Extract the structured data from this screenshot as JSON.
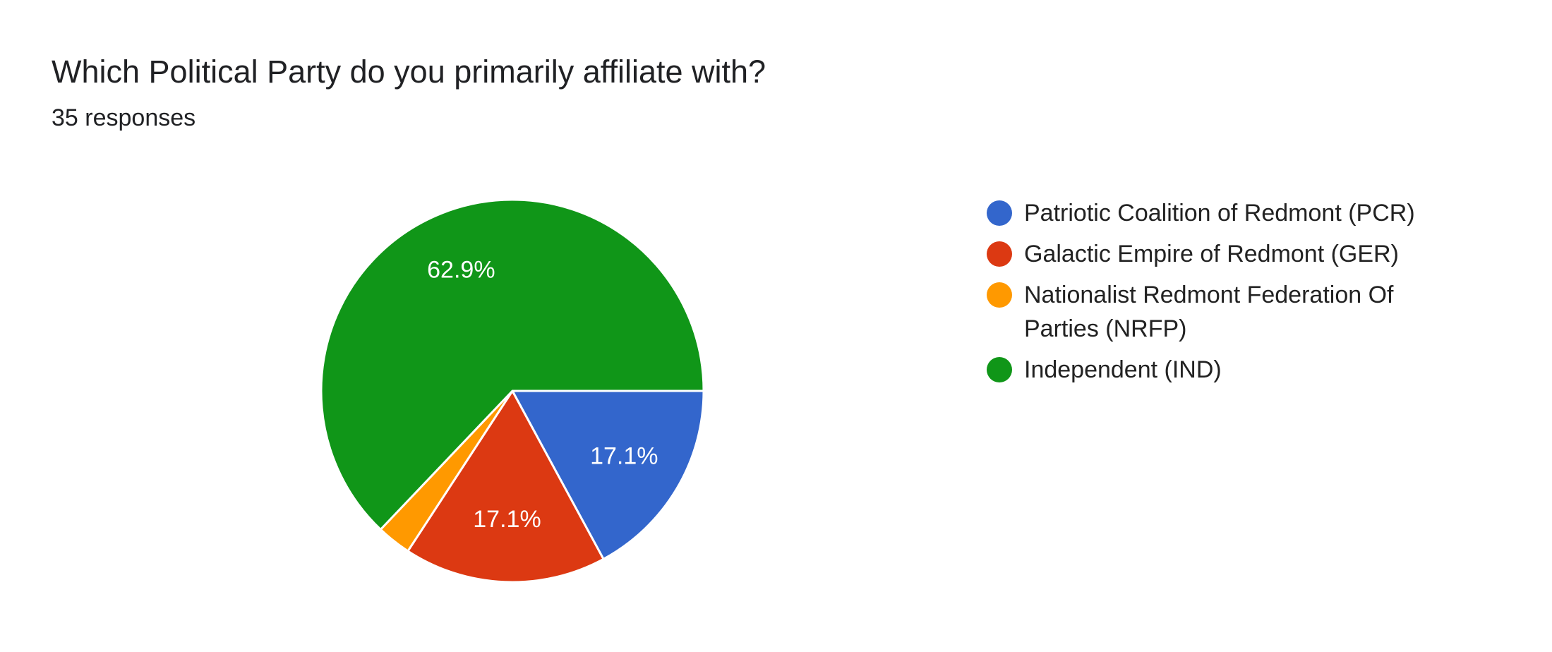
{
  "chart_data": {
    "type": "pie",
    "title": "Which Political Party do you primarily affiliate with?",
    "subtitle": "35 responses",
    "categories": [
      "Patriotic Coalition of Redmont (PCR)",
      "Galactic Empire of Redmont (GER)",
      "Nationalist Redmont Federation Of Parties (NRFP)",
      "Independent (IND)"
    ],
    "values": [
      17.1,
      17.1,
      2.9,
      62.9
    ],
    "value_labels": [
      "17.1%",
      "17.1%",
      null,
      "62.9%"
    ],
    "colors": [
      "#3366cc",
      "#dc3912",
      "#ff9900",
      "#109618"
    ],
    "legend": "right"
  }
}
